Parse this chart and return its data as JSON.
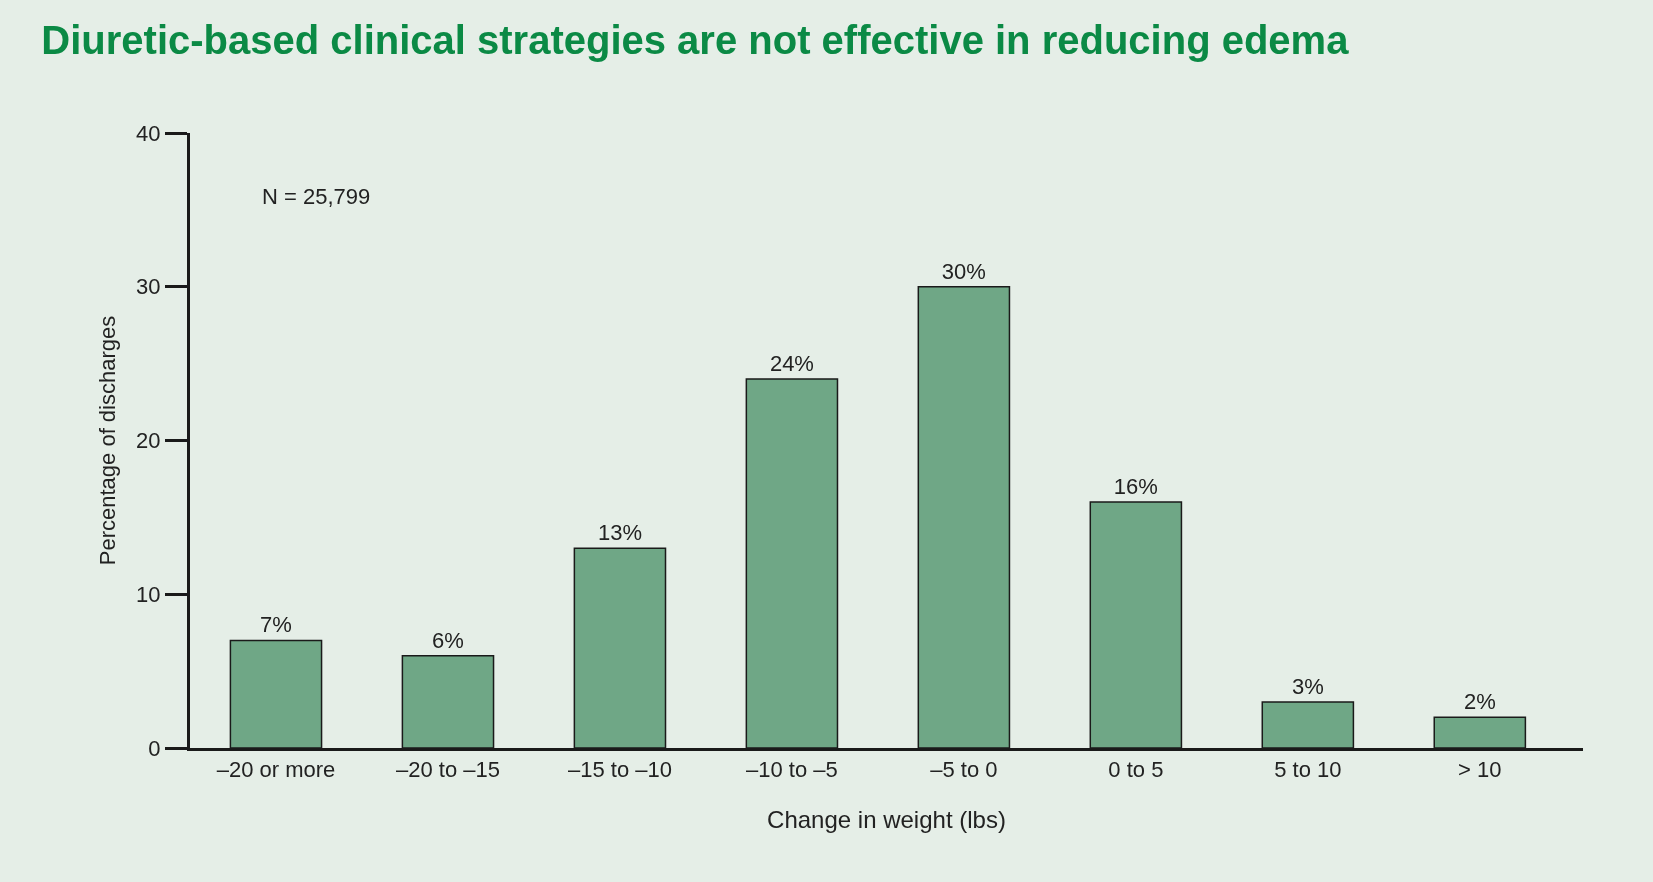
{
  "chart_data": {
    "type": "bar",
    "title": "Diuretic-based clinical strategies are not effective in reducing edema",
    "xlabel": "Change in weight (lbs)",
    "ylabel": "Percentage of discharges",
    "categories": [
      "–20 or more",
      "–20 to –15",
      "–15 to –10",
      "–10 to –5",
      "–5 to 0",
      "0 to 5",
      "5 to 10",
      "> 10"
    ],
    "values": [
      7,
      6,
      13,
      24,
      30,
      16,
      3,
      2
    ],
    "value_labels": [
      "7%",
      "6%",
      "13%",
      "24%",
      "30%",
      "16%",
      "3%",
      "2%"
    ],
    "color": "#6fa786",
    "ylim": [
      0,
      40
    ],
    "yticks": [
      0,
      10,
      20,
      30,
      40
    ],
    "grid": false,
    "annotations": [
      "N = 25,799"
    ]
  }
}
